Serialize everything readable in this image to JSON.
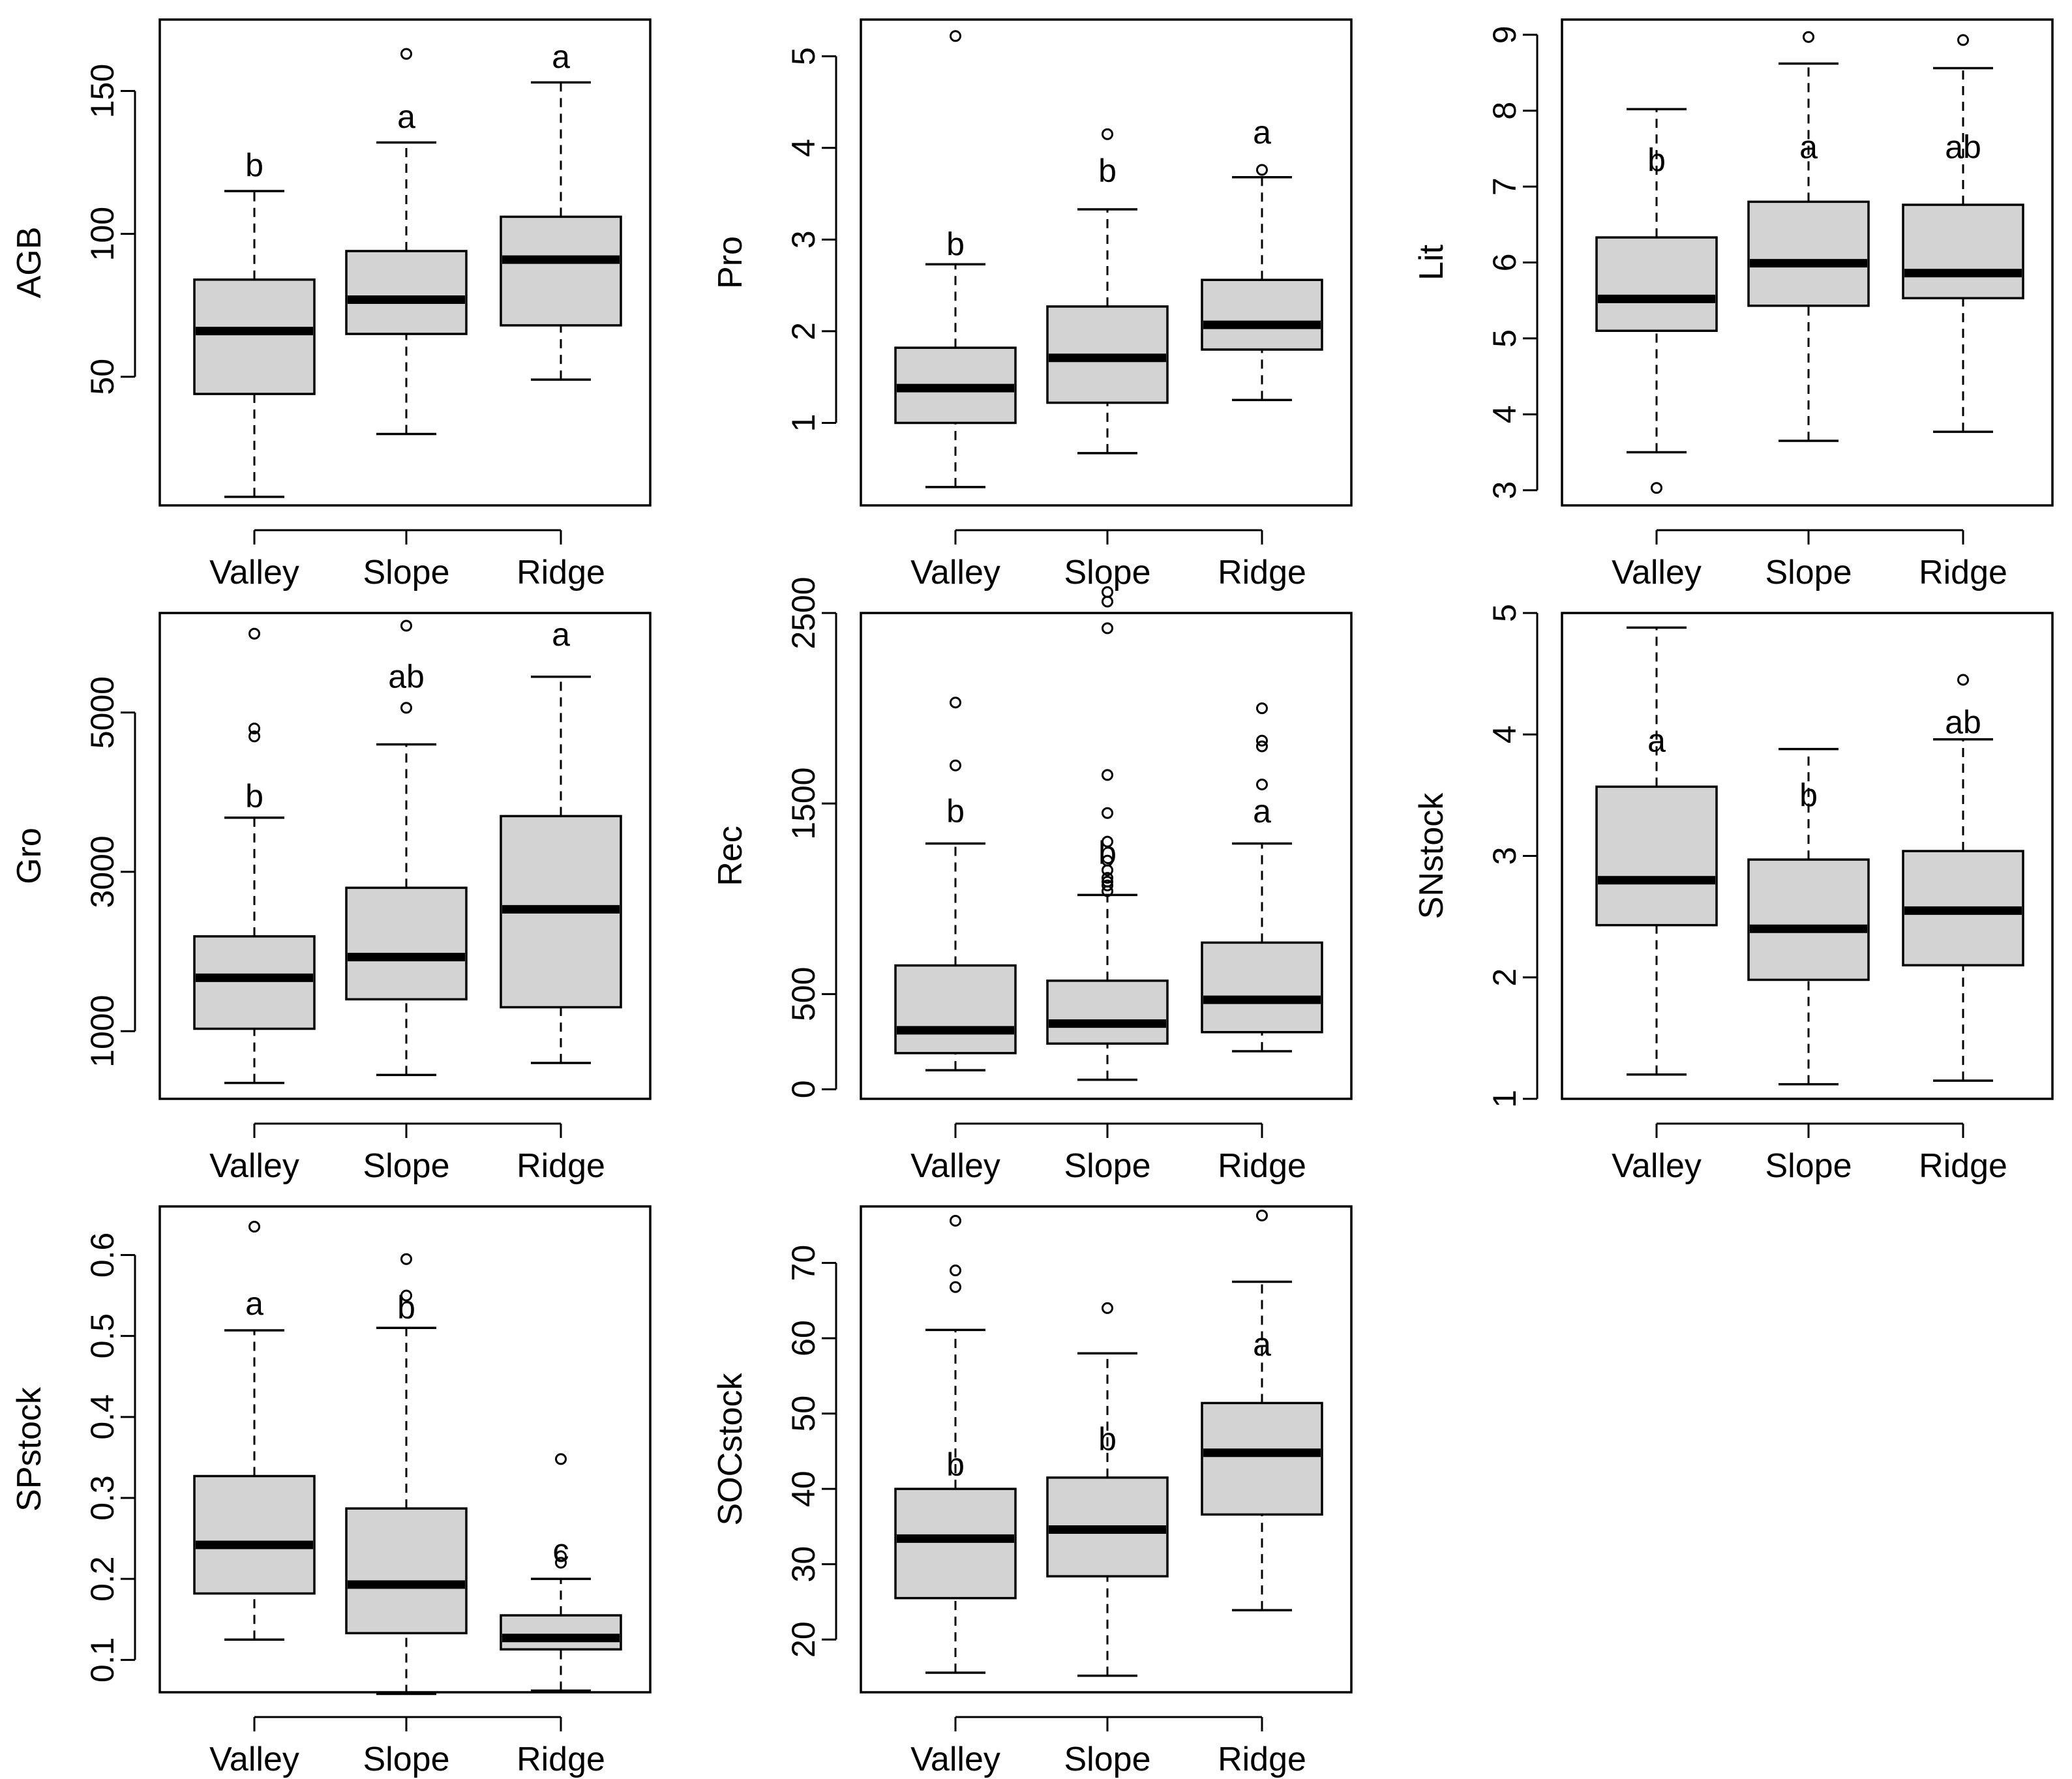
{
  "chart_data": [
    {
      "type": "box",
      "ylabel": "AGB",
      "ylim": [
        5,
        175
      ],
      "yticks": [
        50,
        100,
        150
      ],
      "categories": [
        "Valley",
        "Slope",
        "Ridge"
      ],
      "boxes": [
        {
          "min": 8,
          "q1": 44,
          "median": 66,
          "q3": 84,
          "max": 115,
          "outliers": [],
          "letter": "b",
          "letter_y": 124
        },
        {
          "min": 30,
          "q1": 65,
          "median": 77,
          "q3": 94,
          "max": 132,
          "outliers": [
            163
          ],
          "letter": "a",
          "letter_y": 141
        },
        {
          "min": 49,
          "q1": 68,
          "median": 91,
          "q3": 106,
          "max": 153,
          "outliers": [],
          "letter": "a",
          "letter_y": 162
        }
      ]
    },
    {
      "type": "box",
      "ylabel": "Pro",
      "ylim": [
        0.1,
        5.4
      ],
      "yticks": [
        1,
        2,
        3,
        4,
        5
      ],
      "categories": [
        "Valley",
        "Slope",
        "Ridge"
      ],
      "boxes": [
        {
          "min": 0.3,
          "q1": 1.0,
          "median": 1.38,
          "q3": 1.82,
          "max": 2.73,
          "outliers": [
            5.22
          ],
          "letter": "b",
          "letter_y": 2.95
        },
        {
          "min": 0.67,
          "q1": 1.22,
          "median": 1.71,
          "q3": 2.27,
          "max": 3.33,
          "outliers": [
            4.15
          ],
          "letter": "b",
          "letter_y": 3.75
        },
        {
          "min": 1.25,
          "q1": 1.8,
          "median": 2.07,
          "q3": 2.56,
          "max": 3.68,
          "outliers": [
            3.76
          ],
          "letter": "a",
          "letter_y": 4.17
        }
      ]
    },
    {
      "type": "box",
      "ylabel": "Lit",
      "ylim": [
        2.8,
        9.2
      ],
      "yticks": [
        3,
        4,
        5,
        6,
        7,
        8,
        9
      ],
      "categories": [
        "Valley",
        "Slope",
        "Ridge"
      ],
      "boxes": [
        {
          "min": 3.5,
          "q1": 5.1,
          "median": 5.52,
          "q3": 6.33,
          "max": 8.02,
          "outliers": [
            3.03
          ],
          "letter": "b",
          "letter_y": 7.35
        },
        {
          "min": 3.65,
          "q1": 5.43,
          "median": 5.99,
          "q3": 6.8,
          "max": 8.62,
          "outliers": [
            8.97
          ],
          "letter": "a",
          "letter_y": 7.52
        },
        {
          "min": 3.77,
          "q1": 5.53,
          "median": 5.86,
          "q3": 6.76,
          "max": 8.56,
          "outliers": [
            8.93
          ],
          "letter": "ab",
          "letter_y": 7.52
        }
      ]
    },
    {
      "type": "box",
      "ylabel": "Gro",
      "ylim": [
        150,
        6250
      ],
      "yticks": [
        1000,
        3000,
        5000
      ],
      "categories": [
        "Valley",
        "Slope",
        "Ridge"
      ],
      "boxes": [
        {
          "min": 350,
          "q1": 1030,
          "median": 1670,
          "q3": 2190,
          "max": 3680,
          "outliers": [
            4700,
            4800,
            5990
          ],
          "letter": "b",
          "letter_y": 3950
        },
        {
          "min": 450,
          "q1": 1400,
          "median": 1930,
          "q3": 2800,
          "max": 4600,
          "outliers": [
            5060,
            6090
          ],
          "letter": "ab",
          "letter_y": 5450
        },
        {
          "min": 600,
          "q1": 1300,
          "median": 2530,
          "q3": 3700,
          "max": 5450,
          "outliers": [],
          "letter": "a",
          "letter_y": 5980
        }
      ]
    },
    {
      "type": "box",
      "ylabel": "Rec",
      "ylim": [
        -50,
        2500
      ],
      "yticks": [
        0,
        500,
        1500,
        2500
      ],
      "categories": [
        "Valley",
        "Slope",
        "Ridge"
      ],
      "boxes": [
        {
          "min": 100,
          "q1": 190,
          "median": 310,
          "q3": 650,
          "max": 1290,
          "outliers": [
            1700,
            2030
          ],
          "letter": "b",
          "letter_y": 1460
        },
        {
          "min": 50,
          "q1": 240,
          "median": 345,
          "q3": 570,
          "max": 1020,
          "outliers": [
            1040,
            1070,
            1090,
            1110,
            1150,
            1200,
            1300,
            1450,
            1650,
            2420,
            2560,
            2610
          ],
          "letter": "b",
          "letter_y": 1240
        },
        {
          "min": 200,
          "q1": 300,
          "median": 470,
          "q3": 770,
          "max": 1290,
          "outliers": [
            1600,
            1800,
            1830,
            2000
          ],
          "letter": "a",
          "letter_y": 1460
        }
      ]
    },
    {
      "type": "box",
      "ylabel": "SNstock",
      "ylim": [
        1.0,
        5.0
      ],
      "yticks": [
        1,
        2,
        3,
        4,
        5
      ],
      "categories": [
        "Valley",
        "Slope",
        "Ridge"
      ],
      "boxes": [
        {
          "min": 1.2,
          "q1": 2.43,
          "median": 2.8,
          "q3": 3.57,
          "max": 4.88,
          "outliers": [],
          "letter": "a",
          "letter_y": 3.95
        },
        {
          "min": 1.12,
          "q1": 1.98,
          "median": 2.4,
          "q3": 2.97,
          "max": 3.88,
          "outliers": [],
          "letter": "b",
          "letter_y": 3.5
        },
        {
          "min": 1.15,
          "q1": 2.1,
          "median": 2.55,
          "q3": 3.04,
          "max": 3.96,
          "outliers": [
            4.45
          ],
          "letter": "ab",
          "letter_y": 4.1
        }
      ]
    },
    {
      "type": "box",
      "ylabel": "SPstock",
      "ylim": [
        0.06,
        0.66
      ],
      "yticks": [
        0.1,
        0.2,
        0.3,
        0.4,
        0.5,
        0.6
      ],
      "categories": [
        "Valley",
        "Slope",
        "Ridge"
      ],
      "boxes": [
        {
          "min": 0.125,
          "q1": 0.182,
          "median": 0.242,
          "q3": 0.327,
          "max": 0.507,
          "outliers": [
            0.635
          ],
          "letter": "a",
          "letter_y": 0.54
        },
        {
          "min": 0.058,
          "q1": 0.133,
          "median": 0.193,
          "q3": 0.287,
          "max": 0.51,
          "outliers": [
            0.55,
            0.595
          ],
          "letter": "b",
          "letter_y": 0.535
        },
        {
          "min": 0.062,
          "q1": 0.113,
          "median": 0.127,
          "q3": 0.155,
          "max": 0.2,
          "outliers": [
            0.22,
            0.228,
            0.348
          ],
          "letter": "c",
          "letter_y": 0.235
        }
      ]
    },
    {
      "type": "box",
      "ylabel": "SOCstock",
      "ylim": [
        13,
        77.5
      ],
      "yticks": [
        20,
        30,
        40,
        50,
        60,
        70
      ],
      "categories": [
        "Valley",
        "Slope",
        "Ridge"
      ],
      "boxes": [
        {
          "min": 15.6,
          "q1": 25.5,
          "median": 33.4,
          "q3": 40.0,
          "max": 61.1,
          "outliers": [
            66.8,
            69.0,
            75.6
          ],
          "letter": "b",
          "letter_y": 43.2
        },
        {
          "min": 15.2,
          "q1": 28.4,
          "median": 34.6,
          "q3": 41.5,
          "max": 58.0,
          "outliers": [
            64.0
          ],
          "letter": "b",
          "letter_y": 46.6
        },
        {
          "min": 23.9,
          "q1": 36.6,
          "median": 44.8,
          "q3": 51.4,
          "max": 67.5,
          "outliers": [
            76.3
          ],
          "letter": "a",
          "letter_y": 59.2
        }
      ]
    }
  ]
}
